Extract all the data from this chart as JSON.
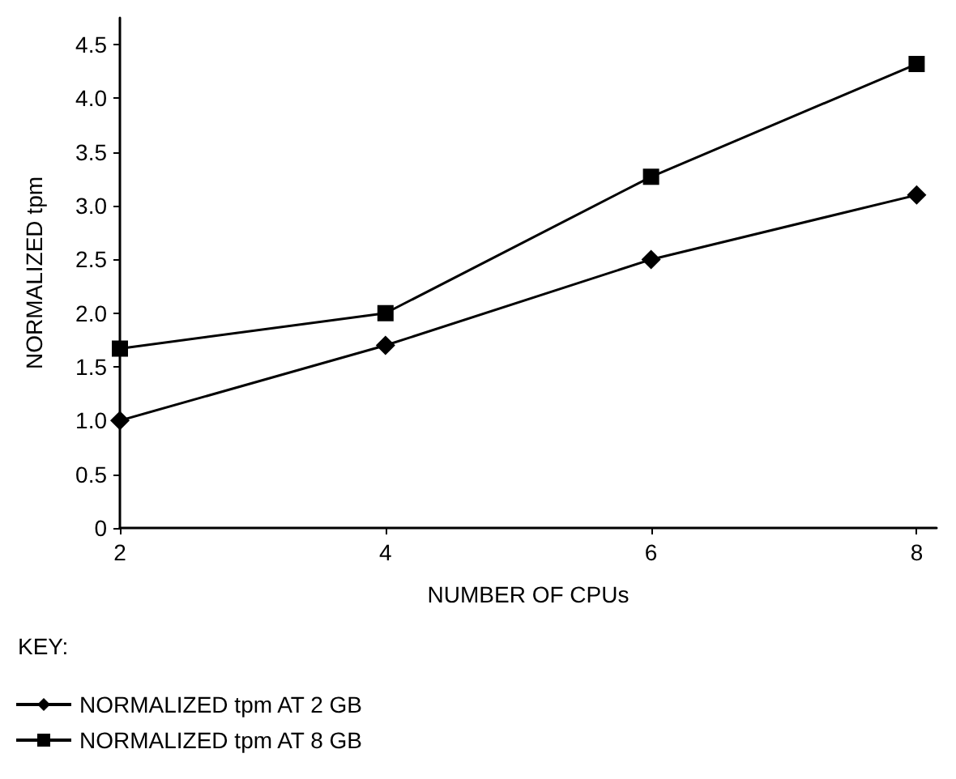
{
  "chart_data": {
    "type": "line",
    "xlabel": "NUMBER OF CPUs",
    "ylabel": "NORMALIZED tpm",
    "legend_title": "KEY:",
    "legend": "bottom left",
    "grid": false,
    "x": [
      2,
      4,
      6,
      8
    ],
    "xlim": [
      2,
      8.15
    ],
    "xticks": [
      2,
      4,
      6,
      8
    ],
    "ylim": [
      0,
      4.75
    ],
    "yticks": [
      0,
      {
        "value": 0.5,
        "label": "0.5"
      },
      {
        "value": 1,
        "label": "1.0"
      },
      {
        "value": 1.5,
        "label": "1.5"
      },
      {
        "value": 2,
        "label": "2.0"
      },
      {
        "value": 2.5,
        "label": "2.5"
      },
      {
        "value": 3,
        "label": "3.0"
      },
      {
        "value": 3.5,
        "label": "3.5"
      },
      {
        "value": 4,
        "label": "4.0"
      },
      {
        "value": 4.5,
        "label": "4.5"
      }
    ],
    "series": [
      {
        "name": "NORMALIZED tpm AT 2 GB",
        "color": "#000000",
        "marker": "diamond",
        "values": [
          1.0,
          1.7,
          2.5,
          3.1
        ]
      },
      {
        "name": "NORMALIZED tpm AT 8 GB",
        "color": "#000000",
        "marker": "square",
        "values": [
          1.67,
          2.0,
          3.27,
          4.32
        ]
      }
    ]
  }
}
